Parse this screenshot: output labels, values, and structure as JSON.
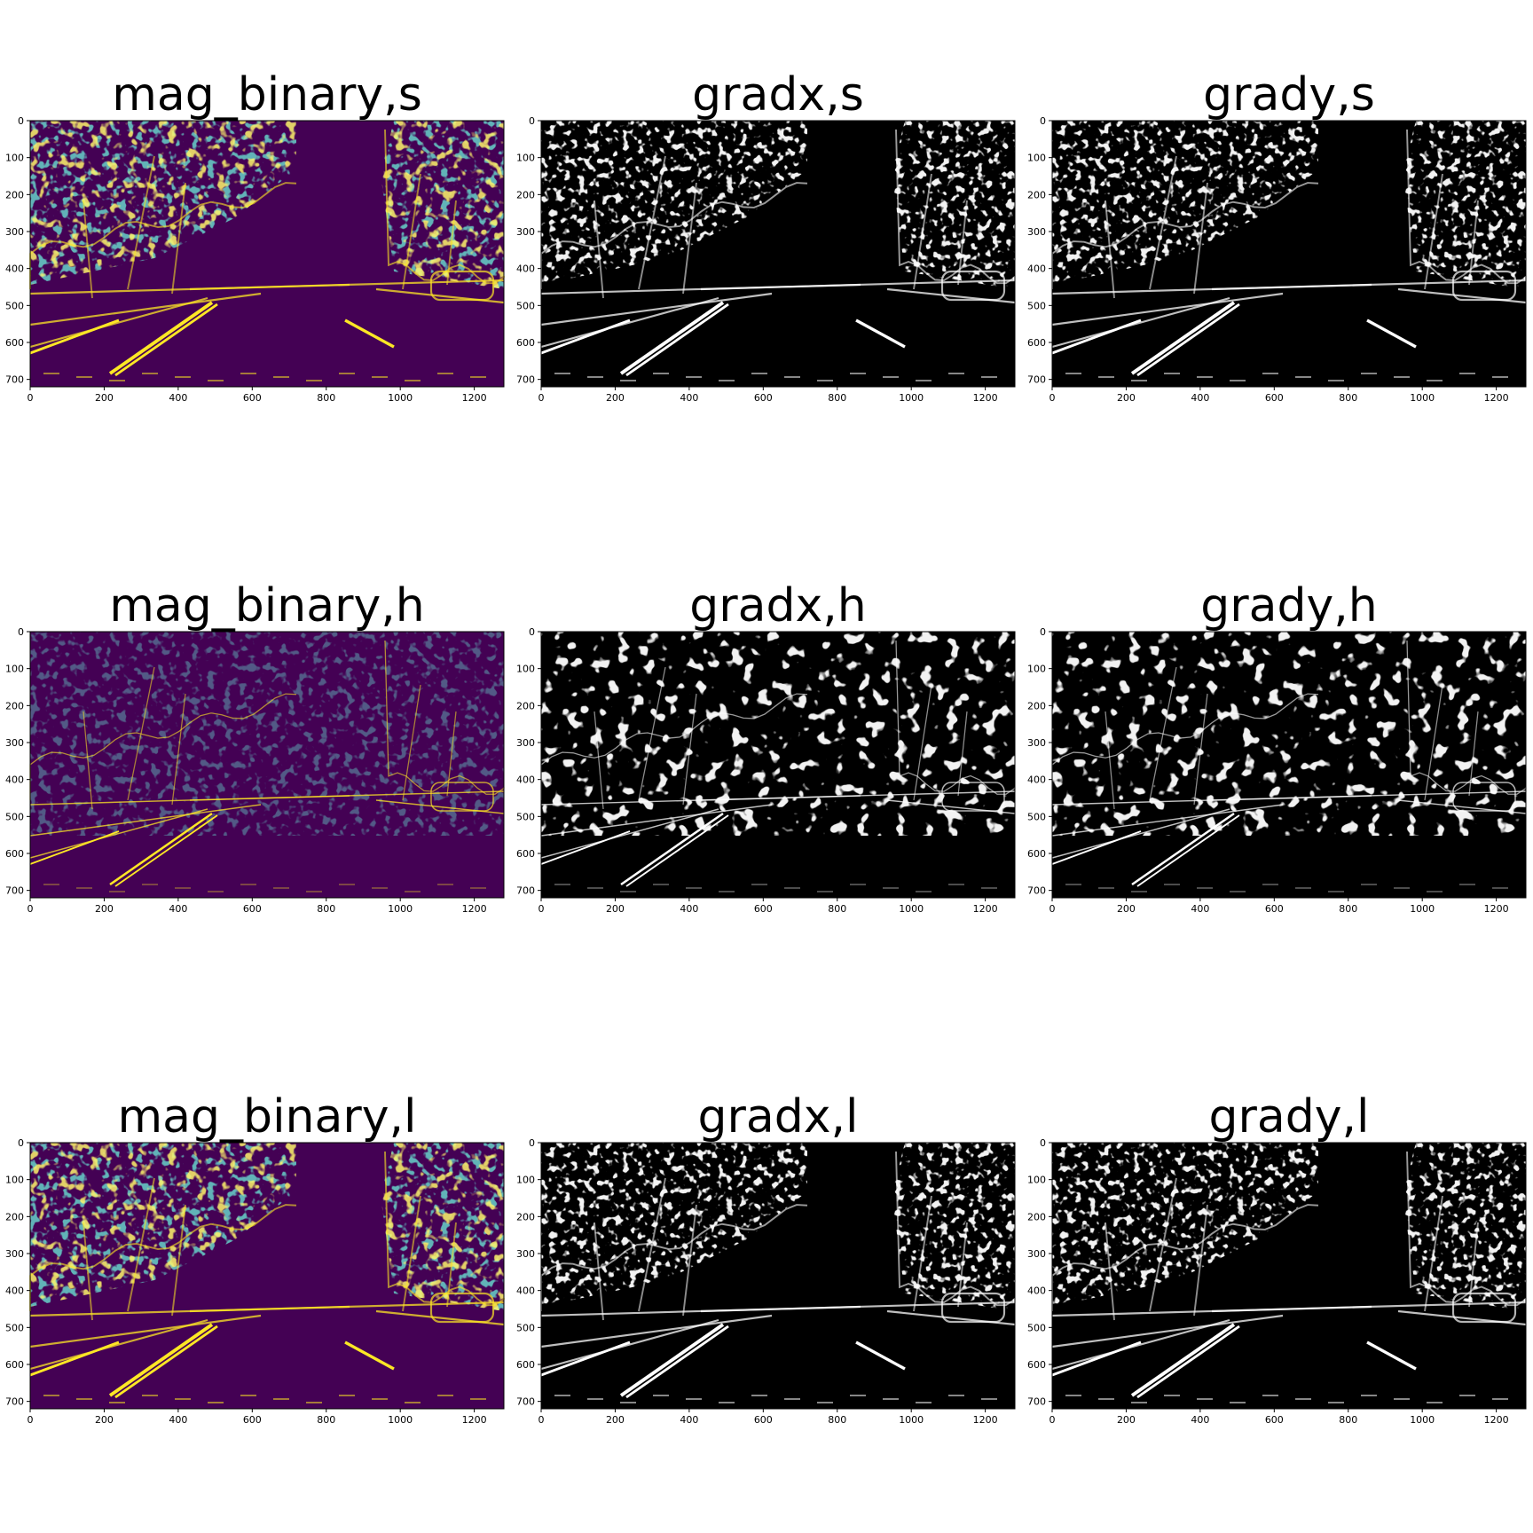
{
  "figure": {
    "panels": [
      {
        "title": "mag_binary,s",
        "colormap": "viridis",
        "channel": "s"
      },
      {
        "title": "gradx,s",
        "colormap": "gray",
        "channel": "s"
      },
      {
        "title": "grady,s",
        "colormap": "gray",
        "channel": "s"
      },
      {
        "title": "mag_binary,h",
        "colormap": "viridis",
        "channel": "h"
      },
      {
        "title": "gradx,h",
        "colormap": "gray",
        "channel": "h"
      },
      {
        "title": "grady,h",
        "colormap": "gray",
        "channel": "h"
      },
      {
        "title": "mag_binary,l",
        "colormap": "viridis",
        "channel": "l"
      },
      {
        "title": "gradx,l",
        "colormap": "gray",
        "channel": "l"
      },
      {
        "title": "grady,l",
        "colormap": "gray",
        "channel": "l"
      }
    ],
    "x_ticks": [
      "0",
      "200",
      "400",
      "600",
      "800",
      "1000",
      "1200"
    ],
    "y_ticks": [
      "0",
      "100",
      "200",
      "300",
      "400",
      "500",
      "600",
      "700"
    ],
    "x_tick_values": [
      0,
      200,
      400,
      600,
      800,
      1000,
      1200
    ],
    "y_tick_values": [
      0,
      100,
      200,
      300,
      400,
      500,
      600,
      700
    ],
    "image_extent": {
      "width": 1280,
      "height": 720
    },
    "colors": {
      "viridis_background": "#440154",
      "viridis_edge_mid": "#21918c",
      "viridis_edge_high": "#fde725",
      "gray_background": "#000000",
      "gray_edge": "#ffffff"
    }
  }
}
